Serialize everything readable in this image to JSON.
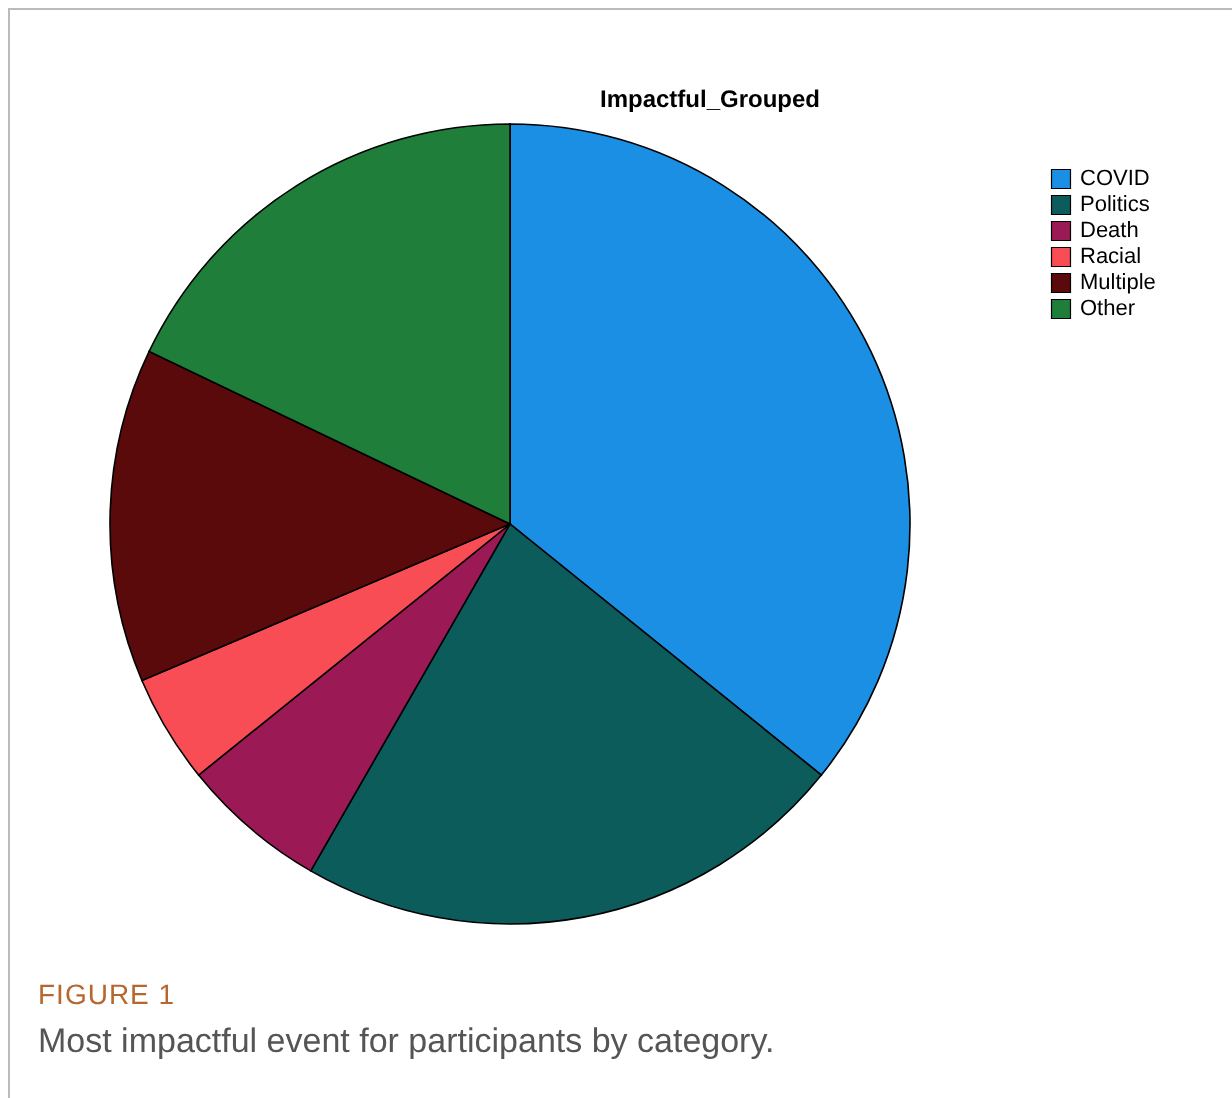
{
  "chart_data": {
    "type": "pie",
    "title": "Impactful_Grouped",
    "categories": [
      "COVID",
      "Politics",
      "Death",
      "Racial",
      "Multiple",
      "Other"
    ],
    "values": [
      35.8,
      22.5,
      5.9,
      4.4,
      13.5,
      17.9
    ],
    "colors": [
      "#1a8fe3",
      "#0d5c5c",
      "#9b1a55",
      "#f94d55",
      "#5a0a0a",
      "#1e7e3a"
    ],
    "legend": "top right",
    "annotations": [
      "FIGURE 1",
      "Most impactful event for participants by category."
    ]
  }
}
